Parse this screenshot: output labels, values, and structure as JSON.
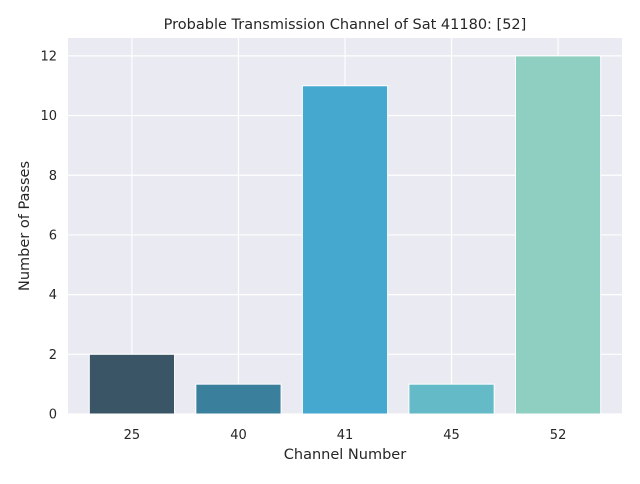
{
  "chart_data": {
    "type": "bar",
    "title": "Probable Transmission Channel of Sat 41180: [52]",
    "xlabel": "Channel Number",
    "ylabel": "Number of Passes",
    "categories": [
      "25",
      "40",
      "41",
      "45",
      "52"
    ],
    "values": [
      2,
      1,
      11,
      1,
      12
    ],
    "bar_colors": [
      "#3a5565",
      "#3a7f9c",
      "#45a8cf",
      "#64bac6",
      "#8fcfc1"
    ],
    "ylim": [
      0,
      12.6
    ],
    "yticks": [
      0,
      2,
      4,
      6,
      8,
      10,
      12
    ],
    "grid": true,
    "plot_background": "#eaeaf2",
    "grid_color": "#ffffff"
  }
}
